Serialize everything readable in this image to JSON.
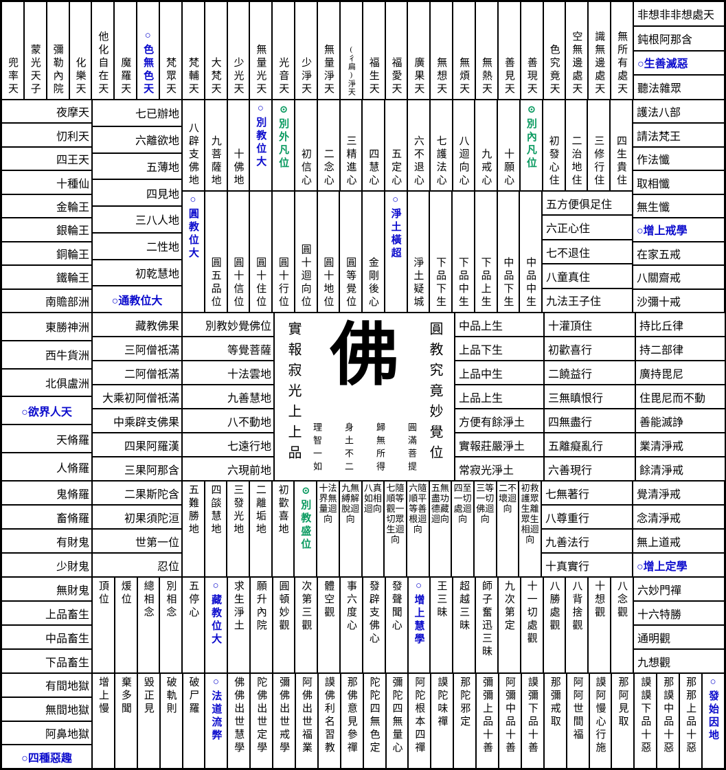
{
  "palette": {
    "blue": "#0a0acc",
    "green": "#0a9a60",
    "line": "#000000"
  },
  "band1": {
    "columns": [
      "兜率天",
      "蒙光天子",
      "彌勒內院",
      "化樂天",
      "他化自在天",
      "魔羅天",
      {
        "t": "○色無色天",
        "c": "blue"
      },
      "梵眾天",
      "梵輔天",
      "大梵天",
      "少光天",
      "無量光天",
      "光音天",
      "少淨天",
      "無量淨天",
      {
        "t": "(彳扁)淨天",
        "c": "small"
      },
      "福生天",
      "福愛天",
      "廣果天",
      "無想天",
      "無煩天",
      "無熱天",
      "善見天",
      "善現天",
      "色究竟天",
      "空無邊處天",
      "識無邊處天",
      "無所有處天"
    ],
    "right_rows": [
      "非想非非想處天",
      "鈍根阿那含",
      {
        "t": "○生善滅惡",
        "c": "blue"
      },
      "聽法雜眾"
    ]
  },
  "band2": {
    "colA": [
      "夜摩天",
      "忉利天",
      "四王天",
      "十種仙",
      "金輪王",
      "銀輪王",
      "銅輪王",
      "鐵輪王",
      "南贍部洲"
    ],
    "colB": [
      "七已辦地",
      "六離欲地",
      "五薄地",
      "四見地",
      "三八人地",
      "二性地",
      "初乾慧地"
    ],
    "colB_merged": {
      "t": "○通教位大"
    },
    "top_columns": [
      "八辟支佛地",
      "九菩薩地",
      "十佛地",
      {
        "t": "○別教位大",
        "c": "blue"
      },
      {
        "t": "⊙別外凡位",
        "c": "green"
      },
      "初信心",
      "二念心",
      "三精進心",
      "四慧心",
      "五定心",
      "六不退心",
      "七護法心",
      "八迴向心",
      "九戒心",
      "十願心",
      {
        "t": "⊙別內凡位",
        "c": "green"
      },
      "初發心住",
      "二治地住",
      "三修行住",
      "四生貴住"
    ],
    "bottom_columns": [
      {
        "t": "○圓教位大",
        "c": "blue"
      },
      "圓五品位",
      "圓十信位",
      "圓十住位",
      "圓十行位",
      "圓十迴向位",
      "圓十地位",
      "圓等覺位",
      "金剛後心",
      {
        "t": "○淨土橫超",
        "c": "blue"
      },
      "淨土疑城",
      "下品下生",
      "下品中生",
      "下品上生",
      "中品下生",
      "中品中生"
    ],
    "bottom_right_rows": [
      "五方便俱足住",
      "六正心住",
      "七不退住",
      "八童真住",
      "九法王子住"
    ],
    "right_rows": [
      "護法八部",
      "請法梵王",
      "作法懺",
      "取相懺",
      "無生懺",
      {
        "t": "○增上戒學",
        "c": "blue"
      },
      "在家五戒",
      "八關齋戒",
      "沙彌十戒"
    ]
  },
  "band3": {
    "colA": [
      "東勝神洲",
      "西牛貨洲",
      "北俱盧洲",
      {
        "t": "○欲界人天",
        "c": "blue",
        "span": 2
      },
      "天脩羅",
      "人脩羅"
    ],
    "colB": [
      "藏教佛果",
      "三阿僧祇滿",
      "二阿僧祇滿",
      "大乘初阿僧祇滿",
      "中乘辟支佛果",
      "四果阿羅漢",
      "三果阿那含"
    ],
    "colC": [
      "別教妙覺佛位",
      "等覺菩薩",
      "十法雲地",
      "九善慧地",
      "八不動地",
      "七遠行地",
      "六現前地"
    ],
    "center": {
      "left_vertical": "實報寂光上上品",
      "buddha": "佛",
      "right_vertical": "圓教究竟妙覺位",
      "mottos": [
        "理智一如",
        "身土不二",
        "歸無所得",
        "圓滿菩提"
      ]
    },
    "colE": [
      "中品上生",
      "上品下生",
      "上品中生",
      "上品上生",
      "方便有餘淨土",
      "實報莊嚴淨土",
      "常寂光淨土"
    ],
    "colF": [
      "十灌頂住",
      "初歡喜行",
      "二饒益行",
      "三無瞋恨行",
      "四無盡行",
      "五離癡亂行",
      "六善現行"
    ],
    "right_rows": [
      "持比丘律",
      "持二部律",
      "廣持毘尼",
      "住毘尼而不動",
      "善能滅諍",
      "業清淨戒",
      "餘清淨戒"
    ]
  },
  "band4": {
    "colA": [
      "鬼脩羅",
      "畜脩羅",
      "有財鬼",
      "少財鬼"
    ],
    "colB": [
      "二果斯陀含",
      "初果須陀洹",
      "世第一位",
      "忍位"
    ],
    "columns_single": [
      "五難勝地",
      "四燄慧地",
      "三發光地",
      "二離垢地",
      "初歡喜地",
      {
        "t": "⊙別教盛位",
        "c": "green"
      }
    ],
    "columns_wrapped": [
      "十法界無量迴向",
      "九無縛解脫迴向",
      "八真如相迴向",
      "七隨順等觀一切眾生迴向",
      "六隨順平等善根迴向",
      "五無盡功德藏迴向",
      "四至一切處迴向",
      "三等一切佛迴向",
      "二不壞迴向",
      "初救護眾生離眾生相迴向"
    ],
    "colF": [
      "七無著行",
      "八尊重行",
      "九善法行",
      "十真實行"
    ],
    "right_rows": [
      "覺清淨戒",
      "念清淨戒",
      "無上道戒",
      {
        "t": "○增上定學",
        "c": "blue"
      }
    ]
  },
  "band5": {
    "colA": [
      "無財鬼",
      "上品畜生",
      "中品畜生",
      "下品畜生"
    ],
    "columns": [
      "頂位",
      "煖位",
      "總相念",
      "別相念",
      "五停心",
      {
        "t": "○藏教位大",
        "c": "blue"
      },
      "求生淨土",
      "願升內院",
      "圓頓妙觀",
      "次第三觀",
      "體空觀",
      "事六度心",
      "發辟支佛心",
      "發聲聞心",
      {
        "t": "○增上慧學",
        "c": "blue"
      },
      "王三昧",
      "超越三昧",
      "師子奮迅三昧",
      "九次第定",
      "十一切處觀",
      "八勝處觀",
      "八背捨觀",
      "十想觀",
      "八念觀"
    ],
    "right_rows": [
      "六妙門禪",
      "十六特勝",
      "通明觀",
      "九想觀"
    ]
  },
  "band6": {
    "colA": [
      "有間地獄",
      "無間地獄",
      "阿鼻地獄",
      {
        "t": "○四種惡趣",
        "c": "blue"
      }
    ],
    "columns": [
      "增上慢",
      "棄多聞",
      "毀正見",
      "破軌則",
      "破尸羅",
      {
        "t": "○法道流弊",
        "c": "blue"
      },
      "佛佛出世慧學",
      "陀佛出世定學",
      "彌佛出世戒學",
      "阿佛出世福業",
      "謨佛利名習教",
      "那佛意見參禪",
      "陀陀四無色定",
      "彌陀四無量心",
      "阿陀根本四禪",
      "謨陀味禪",
      "那陀邪定",
      "彌彌上品十善",
      "阿彌中品十善",
      "謨彌下品十善",
      "那彌戒取",
      "阿阿世間福",
      "謨阿慢心行施",
      "那阿見取",
      "謨謨下品十惡",
      "那謨中品十惡",
      "那那上品十惡",
      {
        "t": "○發始因地",
        "c": "blue"
      }
    ]
  }
}
